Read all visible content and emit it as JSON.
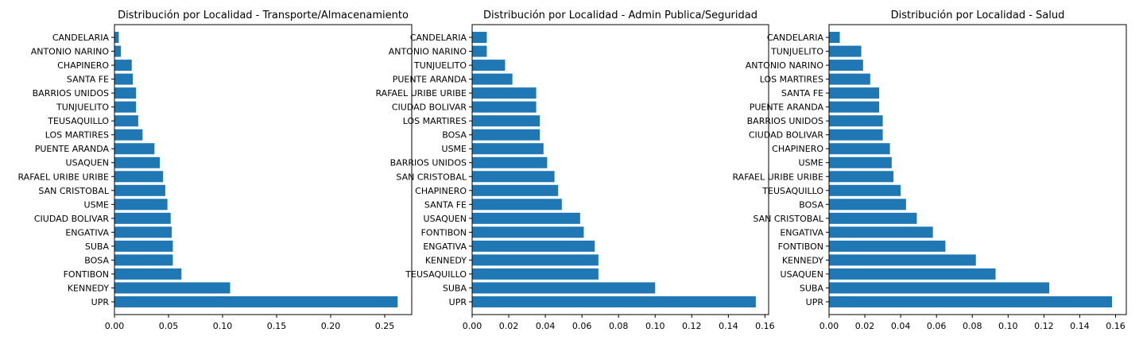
{
  "chart_data": [
    {
      "type": "bar",
      "orientation": "horizontal",
      "title": "Distribución por Localidad - Transporte/Almacenamiento",
      "xlabel": "",
      "ylabel": "",
      "color": "#1f77b4",
      "xlim": [
        0,
        0.275
      ],
      "xticks": [
        "0.00",
        "0.05",
        "0.10",
        "0.15",
        "0.20",
        "0.25"
      ],
      "xtick_values": [
        0,
        0.05,
        0.1,
        0.15,
        0.2,
        0.25
      ],
      "categories": [
        "UPR",
        "KENNEDY",
        "FONTIBON",
        "BOSA",
        "SUBA",
        "ENGATIVA",
        "CIUDAD BOLIVAR",
        "USME",
        "SAN CRISTOBAL",
        "RAFAEL URIBE URIBE",
        "USAQUEN",
        "PUENTE ARANDA",
        "LOS MARTIRES",
        "TEUSAQUILLO",
        "TUNJUELITO",
        "BARRIOS UNIDOS",
        "SANTA FE",
        "CHAPINERO",
        "ANTONIO NARINO",
        "CANDELARIA"
      ],
      "values": [
        0.262,
        0.107,
        0.062,
        0.054,
        0.054,
        0.053,
        0.052,
        0.049,
        0.047,
        0.045,
        0.042,
        0.037,
        0.026,
        0.022,
        0.02,
        0.02,
        0.017,
        0.016,
        0.006,
        0.004
      ]
    },
    {
      "type": "bar",
      "orientation": "horizontal",
      "title": "Distribución por Localidad - Admin Publica/Seguridad",
      "xlabel": "",
      "ylabel": "",
      "color": "#1f77b4",
      "xlim": [
        0,
        0.162
      ],
      "xticks": [
        "0.00",
        "0.02",
        "0.04",
        "0.06",
        "0.08",
        "0.10",
        "0.12",
        "0.14",
        "0.16"
      ],
      "xtick_values": [
        0,
        0.02,
        0.04,
        0.06,
        0.08,
        0.1,
        0.12,
        0.14,
        0.16
      ],
      "categories": [
        "UPR",
        "SUBA",
        "TEUSAQUILLO",
        "KENNEDY",
        "ENGATIVA",
        "FONTIBON",
        "USAQUEN",
        "SANTA FE",
        "CHAPINERO",
        "SAN CRISTOBAL",
        "BARRIOS UNIDOS",
        "USME",
        "BOSA",
        "LOS MARTIRES",
        "CIUDAD BOLIVAR",
        "RAFAEL URIBE URIBE",
        "PUENTE ARANDA",
        "TUNJUELITO",
        "ANTONIO NARINO",
        "CANDELARIA"
      ],
      "values": [
        0.155,
        0.1,
        0.069,
        0.069,
        0.067,
        0.061,
        0.059,
        0.049,
        0.047,
        0.045,
        0.041,
        0.039,
        0.037,
        0.037,
        0.035,
        0.035,
        0.022,
        0.018,
        0.008,
        0.008
      ]
    },
    {
      "type": "bar",
      "orientation": "horizontal",
      "title": "Distribución por Localidad - Salud",
      "xlabel": "",
      "ylabel": "",
      "color": "#1f77b4",
      "xlim": [
        0,
        0.166
      ],
      "xticks": [
        "0.00",
        "0.02",
        "0.04",
        "0.06",
        "0.08",
        "0.10",
        "0.12",
        "0.14",
        "0.16"
      ],
      "xtick_values": [
        0,
        0.02,
        0.04,
        0.06,
        0.08,
        0.1,
        0.12,
        0.14,
        0.16
      ],
      "categories": [
        "UPR",
        "SUBA",
        "USAQUEN",
        "KENNEDY",
        "FONTIBON",
        "ENGATIVA",
        "SAN CRISTOBAL",
        "BOSA",
        "TEUSAQUILLO",
        "RAFAEL URIBE URIBE",
        "USME",
        "CHAPINERO",
        "CIUDAD BOLIVAR",
        "BARRIOS UNIDOS",
        "PUENTE ARANDA",
        "SANTA FE",
        "LOS MARTIRES",
        "ANTONIO NARINO",
        "TUNJUELITO",
        "CANDELARIA"
      ],
      "values": [
        0.158,
        0.123,
        0.093,
        0.082,
        0.065,
        0.058,
        0.049,
        0.043,
        0.04,
        0.036,
        0.035,
        0.034,
        0.03,
        0.03,
        0.028,
        0.028,
        0.023,
        0.019,
        0.018,
        0.006
      ]
    }
  ]
}
